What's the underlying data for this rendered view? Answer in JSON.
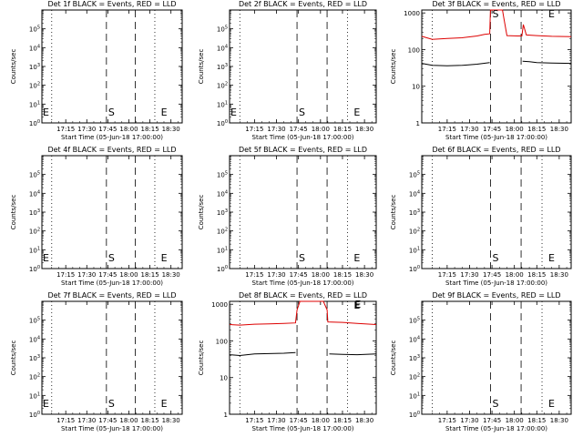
{
  "figure": {
    "x_axis_label": "Start Time (05-Jun-18 17:00:00)",
    "y_axis_label": "Counts/sec",
    "x_tick_labels": [
      "17:15",
      "17:30",
      "17:45",
      "18:00",
      "18:15",
      "18:30"
    ],
    "x_tick_values_min": [
      15,
      30,
      45,
      60,
      75,
      90
    ],
    "x_range_min": [
      -2,
      98
    ],
    "legend_text": "BLACK = Events, RED = LLD",
    "colors": {
      "events": "#000000",
      "lld": "#dd0000"
    },
    "markers": {
      "S": {
        "label": "S",
        "x": 44.0
      },
      "E": {
        "label": "E",
        "x": 81.5
      }
    },
    "dashed_lines_x": [
      44.0,
      64.5
    ],
    "dotted_lines_x": [
      5.0,
      78.5
    ]
  },
  "chart_data": [
    {
      "type": "line",
      "title": "Det 1f BLACK = Events, RED = LLD",
      "has_data": false,
      "y_scale": "log",
      "ylim": [
        1,
        1000000
      ],
      "ytick_labels": [
        "10^0",
        "10^1",
        "10^2",
        "10^3",
        "10^4",
        "10^5"
      ],
      "show_s": true,
      "show_e": true,
      "show_leading_e": true
    },
    {
      "type": "line",
      "title": "Det 2f BLACK = Events, RED = LLD",
      "has_data": false,
      "y_scale": "log",
      "ylim": [
        1,
        1000000
      ],
      "ytick_labels": [
        "10^0",
        "10^1",
        "10^2",
        "10^3",
        "10^4",
        "10^5"
      ],
      "show_s": true,
      "show_e": true,
      "show_leading_e": true
    },
    {
      "type": "line",
      "title": "Det 3f BLACK = Events, RED = LLD",
      "has_data": true,
      "y_scale": "log",
      "ylim": [
        1,
        1200
      ],
      "ytick_labels": [
        "1",
        "10",
        "100",
        "1000"
      ],
      "show_s": true,
      "show_e": true,
      "show_leading_e": false,
      "series": [
        {
          "name": "LLD",
          "color_key": "lld",
          "points": [
            [
              -2,
              230
            ],
            [
              5,
              190
            ],
            [
              15,
              200
            ],
            [
              25,
              210
            ],
            [
              35,
              235
            ],
            [
              40,
              260
            ],
            [
              43.5,
              270
            ],
            [
              44,
              1200
            ],
            [
              49,
              1200
            ],
            [
              52,
              1200
            ],
            [
              53,
              700
            ],
            [
              55,
              240
            ],
            [
              62,
              235
            ],
            [
              65,
              235
            ],
            [
              66,
              480
            ],
            [
              68,
              250
            ],
            [
              75,
              240
            ],
            [
              85,
              230
            ],
            [
              98,
              225
            ]
          ]
        },
        {
          "name": "Events",
          "color_key": "events",
          "points": [
            [
              -2,
              42
            ],
            [
              5,
              37
            ],
            [
              15,
              36
            ],
            [
              25,
              37
            ],
            [
              35,
              40
            ],
            [
              43.5,
              44
            ],
            [
              44,
              null
            ],
            [
              65,
              null
            ],
            [
              65.5,
              48
            ],
            [
              70,
              47
            ],
            [
              75,
              44
            ],
            [
              85,
              43
            ],
            [
              98,
              42
            ]
          ]
        }
      ]
    },
    {
      "type": "line",
      "title": "Det 4f BLACK = Events, RED = LLD",
      "has_data": false,
      "y_scale": "log",
      "ylim": [
        1,
        1000000
      ],
      "ytick_labels": [
        "10^0",
        "10^1",
        "10^2",
        "10^3",
        "10^4",
        "10^5"
      ],
      "show_s": true,
      "show_e": true,
      "show_leading_e": true
    },
    {
      "type": "line",
      "title": "Det 5f BLACK = Events, RED = LLD",
      "has_data": false,
      "y_scale": "log",
      "ylim": [
        1,
        1000000
      ],
      "ytick_labels": [
        "10^0",
        "10^1",
        "10^2",
        "10^3",
        "10^4",
        "10^5"
      ],
      "show_s": true,
      "show_e": true,
      "show_leading_e": false
    },
    {
      "type": "line",
      "title": "Det 6f BLACK = Events, RED = LLD",
      "has_data": false,
      "y_scale": "log",
      "ylim": [
        1,
        1000000
      ],
      "ytick_labels": [
        "10^0",
        "10^1",
        "10^2",
        "10^3",
        "10^4",
        "10^5"
      ],
      "show_s": true,
      "show_e": true,
      "show_leading_e": false
    },
    {
      "type": "line",
      "title": "Det 7f BLACK = Events, RED = LLD",
      "has_data": false,
      "y_scale": "log",
      "ylim": [
        1,
        1000000
      ],
      "ytick_labels": [
        "10^0",
        "10^1",
        "10^2",
        "10^3",
        "10^4",
        "10^5"
      ],
      "show_s": true,
      "show_e": true,
      "show_leading_e": true
    },
    {
      "type": "line",
      "title": "Det 8f BLACK = Events, RED = LLD",
      "has_data": true,
      "y_scale": "log",
      "ylim": [
        1,
        1200
      ],
      "ytick_labels": [
        "1",
        "10",
        "100",
        "1000"
      ],
      "show_s": false,
      "show_e": true,
      "show_leading_e": true,
      "series": [
        {
          "name": "LLD",
          "color_key": "lld",
          "points": [
            [
              -2,
              280
            ],
            [
              5,
              270
            ],
            [
              15,
              285
            ],
            [
              25,
              290
            ],
            [
              35,
              300
            ],
            [
              43,
              310
            ],
            [
              44,
              700
            ],
            [
              46,
              1200
            ],
            [
              62,
              1200
            ],
            [
              64.5,
              700
            ],
            [
              65,
              330
            ],
            [
              75,
              320
            ],
            [
              85,
              300
            ],
            [
              98,
              280
            ]
          ]
        },
        {
          "name": "Events",
          "color_key": "events",
          "points": [
            [
              -2,
              42
            ],
            [
              5,
              40
            ],
            [
              15,
              44
            ],
            [
              25,
              45
            ],
            [
              35,
              46
            ],
            [
              43,
              48
            ],
            [
              44,
              null
            ],
            [
              65,
              null
            ],
            [
              66,
              44
            ],
            [
              75,
              43
            ],
            [
              85,
              42
            ],
            [
              98,
              44
            ]
          ]
        }
      ]
    },
    {
      "type": "line",
      "title": "Det 9f BLACK = Events, RED = LLD",
      "has_data": false,
      "y_scale": "log",
      "ylim": [
        1,
        1000000
      ],
      "ytick_labels": [
        "10^0",
        "10^1",
        "10^2",
        "10^3",
        "10^4",
        "10^5"
      ],
      "show_s": true,
      "show_e": true,
      "show_leading_e": false
    }
  ]
}
